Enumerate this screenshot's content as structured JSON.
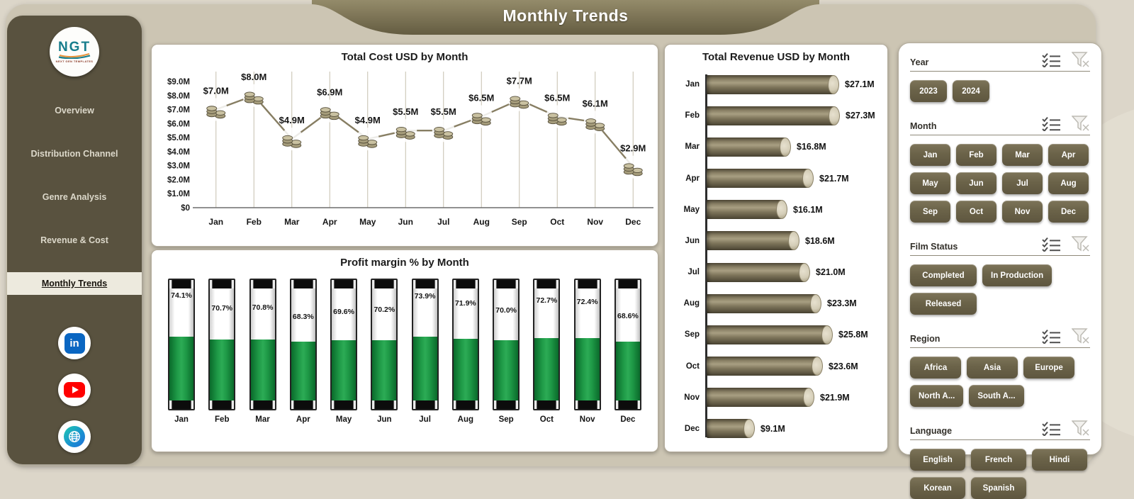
{
  "page_title": "Monthly Trends",
  "logo": {
    "text": "NGT",
    "subtext": "NEXT GEN TEMPLATES"
  },
  "sidebar": {
    "items": [
      {
        "label": "Overview",
        "active": false
      },
      {
        "label": "Distribution Channel",
        "active": false
      },
      {
        "label": "Genre Analysis",
        "active": false
      },
      {
        "label": "Revenue & Cost",
        "active": false
      },
      {
        "label": "Monthly Trends",
        "active": true
      }
    ]
  },
  "social_icons": [
    {
      "name": "linkedin-icon",
      "label": "in"
    },
    {
      "name": "youtube-icon"
    },
    {
      "name": "website-icon"
    }
  ],
  "chart_data": [
    {
      "type": "line",
      "title": "Total Cost USD by Month",
      "categories": [
        "Jan",
        "Feb",
        "Mar",
        "Apr",
        "May",
        "Jun",
        "Jul",
        "Aug",
        "Sep",
        "Oct",
        "Nov",
        "Dec"
      ],
      "values": [
        7.0,
        8.0,
        4.9,
        6.9,
        4.9,
        5.5,
        5.5,
        6.5,
        7.7,
        6.5,
        6.1,
        2.9
      ],
      "labels": [
        "$7.0M",
        "$8.0M",
        "$4.9M",
        "$6.9M",
        "$4.9M",
        "$5.5M",
        "$5.5M",
        "$6.5M",
        "$7.7M",
        "$6.5M",
        "$6.1M",
        "$2.9M"
      ],
      "y_ticks": [
        "$9.0M",
        "$8.0M",
        "$7.0M",
        "$6.0M",
        "$5.0M",
        "$4.0M",
        "$3.0M",
        "$2.0M",
        "$1.0M",
        "$0"
      ],
      "ylim": [
        0,
        9
      ],
      "marker": "coin-stack-icon",
      "grid": "vertical"
    },
    {
      "type": "bar",
      "title": "Profit margin % by Month",
      "categories": [
        "Jan",
        "Feb",
        "Mar",
        "Apr",
        "May",
        "Jun",
        "Jul",
        "Aug",
        "Sep",
        "Oct",
        "Nov",
        "Dec"
      ],
      "values": [
        74.1,
        70.7,
        70.8,
        68.3,
        69.6,
        70.2,
        73.9,
        71.9,
        70.0,
        72.7,
        72.4,
        68.6
      ],
      "labels": [
        "74.1%",
        "70.7%",
        "70.8%",
        "68.3%",
        "69.6%",
        "70.2%",
        "73.9%",
        "71.9%",
        "70.0%",
        "72.7%",
        "72.4%",
        "68.6%"
      ],
      "bar_style": "battery-tube",
      "fill_color": "#1f9a47"
    },
    {
      "type": "bar-horizontal",
      "title": "Total Revenue USD by Month",
      "categories": [
        "Jan",
        "Feb",
        "Mar",
        "Apr",
        "May",
        "Jun",
        "Jul",
        "Aug",
        "Sep",
        "Oct",
        "Nov",
        "Dec"
      ],
      "values": [
        27.1,
        27.3,
        16.8,
        21.7,
        16.1,
        18.6,
        21.0,
        23.3,
        25.8,
        23.6,
        21.9,
        9.1
      ],
      "labels": [
        "$27.1M",
        "$27.3M",
        "$16.8M",
        "$21.7M",
        "$16.1M",
        "$18.6M",
        "$21.0M",
        "$23.3M",
        "$25.8M",
        "$23.6M",
        "$21.9M",
        "$9.1M"
      ],
      "xlim": [
        0,
        27.3
      ],
      "bar_style": "cylinder"
    }
  ],
  "slicers": {
    "header_icons": [
      "select-all-icon",
      "clear-filter-icon"
    ],
    "sections": [
      {
        "title": "Year",
        "options": [
          "2023",
          "2024"
        ],
        "btn_width": 52
      },
      {
        "title": "Month",
        "options": [
          "Jan",
          "Feb",
          "Mar",
          "Apr",
          "May",
          "Jun",
          "Jul",
          "Aug",
          "Sep",
          "Oct",
          "Nov",
          "Dec"
        ],
        "btn_width": 57
      },
      {
        "title": "Film Status",
        "options": [
          "Completed",
          "In Production",
          "Released"
        ],
        "btn_min_width": 94
      },
      {
        "title": "Region",
        "options": [
          "Africa",
          "Asia",
          "Europe",
          "North A...",
          "South A..."
        ],
        "btn_min_width": 72
      },
      {
        "title": "Language",
        "options": [
          "English",
          "French",
          "Hindi",
          "Korean",
          "Spanish"
        ],
        "btn_min_width": 78
      }
    ]
  },
  "colors": {
    "page_bg": "#dcd6c9",
    "card_bg": "#ccc5b3",
    "sidebar": "#59523f",
    "banner": "#6f674a",
    "slicer_button": "#6b6349",
    "battery_green": "#1f9a47",
    "cylinder": "#7b7258",
    "line": "#877e63",
    "linkedin_blue": "#0a66c2",
    "youtube_red": "#ff0000"
  }
}
